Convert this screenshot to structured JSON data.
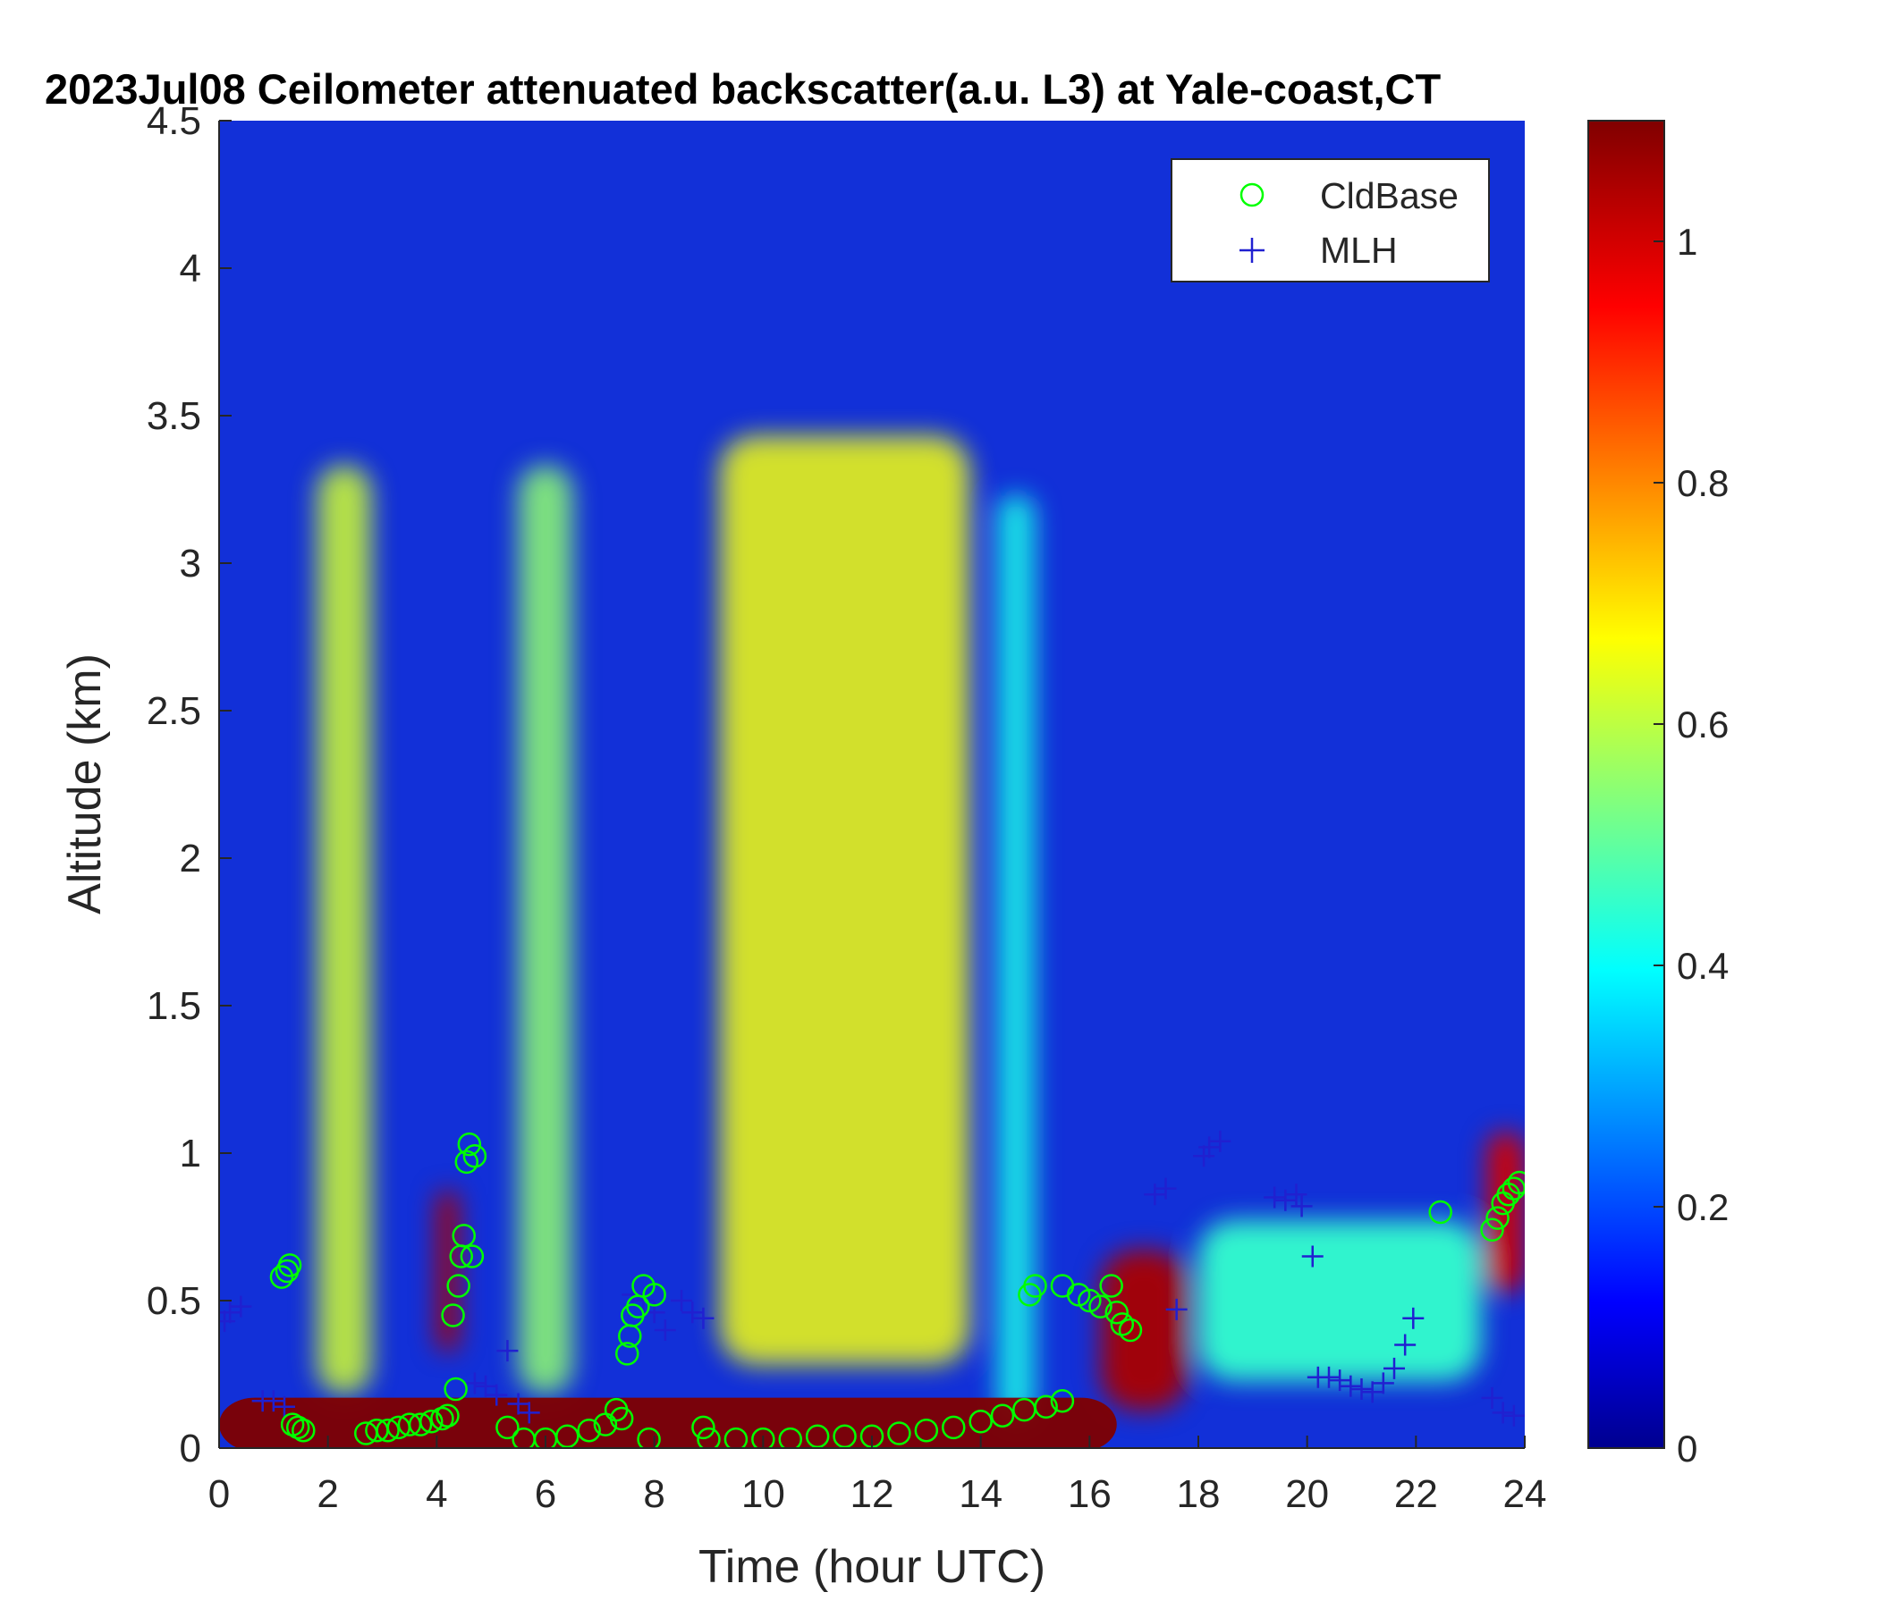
{
  "chart_data": {
    "type": "heatmap",
    "title": "2023Jul08 Ceilometer attenuated backscatter(a.u. L3) at Yale-coast,CT",
    "xlabel": "Time (hour UTC)",
    "ylabel": "Altitude (km)",
    "xlim": [
      0,
      24
    ],
    "ylim": [
      0,
      4.5
    ],
    "x_ticks": [
      "0",
      "2",
      "4",
      "6",
      "8",
      "10",
      "12",
      "14",
      "16",
      "18",
      "20",
      "22",
      "24"
    ],
    "y_ticks": [
      "0",
      "0.5",
      "1",
      "1.5",
      "2",
      "2.5",
      "3",
      "3.5",
      "4",
      "4.5"
    ],
    "colorbar": {
      "colormap": "jet",
      "range": [
        0,
        1.1
      ],
      "ticks": [
        "0",
        "0.2",
        "0.4",
        "0.6",
        "0.8",
        "1"
      ]
    },
    "grid": false,
    "legend_position": "top-right",
    "field_features": [
      {
        "x_range": [
          1.8,
          2.8
        ],
        "y_center": 1.6,
        "intensity": 0.62
      },
      {
        "x_range": [
          5.5,
          6.5
        ],
        "y_center": 1.6,
        "intensity": 0.55
      },
      {
        "x_range": [
          9.2,
          13.8
        ],
        "y_center": 1.7,
        "intensity": 0.66
      },
      {
        "x_range": [
          14.3,
          15.0
        ],
        "y_center": 1.5,
        "intensity": 0.42
      },
      {
        "x_range": [
          18.0,
          23.2
        ],
        "y_center": 0.5,
        "intensity": 0.45
      },
      {
        "x_range": [
          0,
          16.5
        ],
        "y_center": 0.08,
        "intensity": 1.1
      },
      {
        "x_range": [
          16.2,
          17.8
        ],
        "y_center": 0.4,
        "intensity": 1.05
      },
      {
        "x_range": [
          4.0,
          4.4
        ],
        "y_center": 0.6,
        "intensity": 1.05
      },
      {
        "x_range": [
          23.3,
          24
        ],
        "y_center": 0.8,
        "intensity": 1.0
      }
    ],
    "series": [
      {
        "name": "CldBase",
        "marker": "circle",
        "color": "#00ff00",
        "points": [
          [
            1.15,
            0.58
          ],
          [
            1.25,
            0.6
          ],
          [
            1.3,
            0.62
          ],
          [
            1.35,
            0.08
          ],
          [
            1.45,
            0.07
          ],
          [
            1.55,
            0.06
          ],
          [
            2.7,
            0.05
          ],
          [
            2.9,
            0.06
          ],
          [
            3.1,
            0.06
          ],
          [
            3.3,
            0.07
          ],
          [
            3.5,
            0.08
          ],
          [
            3.7,
            0.08
          ],
          [
            3.9,
            0.09
          ],
          [
            4.1,
            0.1
          ],
          [
            4.2,
            0.11
          ],
          [
            4.3,
            0.45
          ],
          [
            4.35,
            0.2
          ],
          [
            4.4,
            0.55
          ],
          [
            4.45,
            0.65
          ],
          [
            4.5,
            0.72
          ],
          [
            4.55,
            0.97
          ],
          [
            4.6,
            1.03
          ],
          [
            4.65,
            0.65
          ],
          [
            4.7,
            0.99
          ],
          [
            5.3,
            0.07
          ],
          [
            5.6,
            0.03
          ],
          [
            6.0,
            0.03
          ],
          [
            6.4,
            0.04
          ],
          [
            6.8,
            0.06
          ],
          [
            7.1,
            0.08
          ],
          [
            7.3,
            0.13
          ],
          [
            7.4,
            0.1
          ],
          [
            7.5,
            0.32
          ],
          [
            7.55,
            0.38
          ],
          [
            7.6,
            0.45
          ],
          [
            7.7,
            0.48
          ],
          [
            7.8,
            0.55
          ],
          [
            8.0,
            0.52
          ],
          [
            7.9,
            0.03
          ],
          [
            8.9,
            0.07
          ],
          [
            9.0,
            0.03
          ],
          [
            9.5,
            0.03
          ],
          [
            10.0,
            0.03
          ],
          [
            10.5,
            0.03
          ],
          [
            11.0,
            0.04
          ],
          [
            11.5,
            0.04
          ],
          [
            12.0,
            0.04
          ],
          [
            12.5,
            0.05
          ],
          [
            13.0,
            0.06
          ],
          [
            13.5,
            0.07
          ],
          [
            14.0,
            0.09
          ],
          [
            14.4,
            0.11
          ],
          [
            14.8,
            0.13
          ],
          [
            15.2,
            0.14
          ],
          [
            15.5,
            0.16
          ],
          [
            14.9,
            0.52
          ],
          [
            15.0,
            0.55
          ],
          [
            15.5,
            0.55
          ],
          [
            15.8,
            0.52
          ],
          [
            16.0,
            0.5
          ],
          [
            16.2,
            0.48
          ],
          [
            16.4,
            0.55
          ],
          [
            16.5,
            0.46
          ],
          [
            16.6,
            0.42
          ],
          [
            16.75,
            0.4
          ],
          [
            22.45,
            0.8
          ],
          [
            23.4,
            0.74
          ],
          [
            23.5,
            0.78
          ],
          [
            23.6,
            0.83
          ],
          [
            23.7,
            0.86
          ],
          [
            23.8,
            0.88
          ],
          [
            23.9,
            0.9
          ]
        ]
      },
      {
        "name": "MLH",
        "marker": "plus",
        "color": "#2020d0",
        "points": [
          [
            0.1,
            0.43
          ],
          [
            0.2,
            0.46
          ],
          [
            0.4,
            0.48
          ],
          [
            0.8,
            0.16
          ],
          [
            1.0,
            0.16
          ],
          [
            1.2,
            0.14
          ],
          [
            4.7,
            0.22
          ],
          [
            4.9,
            0.21
          ],
          [
            5.1,
            0.18
          ],
          [
            5.3,
            0.33
          ],
          [
            5.5,
            0.15
          ],
          [
            5.7,
            0.12
          ],
          [
            7.6,
            0.52
          ],
          [
            7.8,
            0.5
          ],
          [
            8.0,
            0.46
          ],
          [
            8.2,
            0.4
          ],
          [
            8.5,
            0.5
          ],
          [
            8.7,
            0.46
          ],
          [
            8.9,
            0.44
          ],
          [
            17.2,
            0.86
          ],
          [
            17.4,
            0.88
          ],
          [
            17.6,
            0.47
          ],
          [
            18.1,
            0.99
          ],
          [
            18.2,
            1.02
          ],
          [
            18.4,
            1.04
          ],
          [
            19.4,
            0.85
          ],
          [
            19.6,
            0.84
          ],
          [
            19.8,
            0.86
          ],
          [
            19.9,
            0.82
          ],
          [
            20.1,
            0.65
          ],
          [
            20.2,
            0.24
          ],
          [
            20.4,
            0.24
          ],
          [
            20.6,
            0.23
          ],
          [
            20.8,
            0.21
          ],
          [
            21.0,
            0.2
          ],
          [
            21.2,
            0.19
          ],
          [
            21.4,
            0.22
          ],
          [
            21.6,
            0.27
          ],
          [
            21.8,
            0.35
          ],
          [
            21.95,
            0.44
          ],
          [
            23.4,
            0.17
          ],
          [
            23.6,
            0.12
          ],
          [
            23.8,
            0.11
          ]
        ]
      }
    ]
  }
}
